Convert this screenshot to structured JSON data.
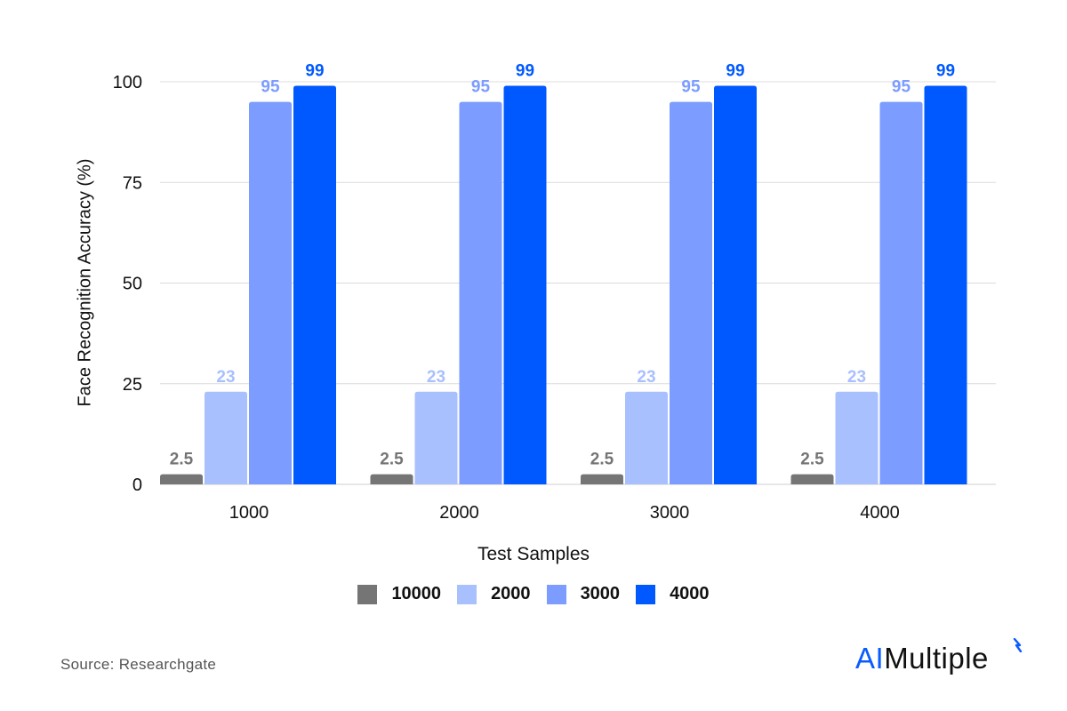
{
  "chart_data": {
    "type": "bar",
    "title": "",
    "xlabel": "Test Samples",
    "ylabel": "Face Recognition Accuracy (%)",
    "categories": [
      "1000",
      "2000",
      "3000",
      "4000"
    ],
    "series": [
      {
        "name": "10000",
        "color": "#757575",
        "label_color": "#757575",
        "values": [
          2.5,
          2.5,
          2.5,
          2.5
        ]
      },
      {
        "name": "2000",
        "color": "#a9c0ff",
        "label_color": "#a9c0ff",
        "values": [
          23,
          23,
          23,
          23
        ]
      },
      {
        "name": "3000",
        "color": "#7c9dff",
        "label_color": "#7c9dff",
        "values": [
          95,
          95,
          95,
          95
        ]
      },
      {
        "name": "4000",
        "color": "#0059ff",
        "label_color": "#0059ff",
        "values": [
          99,
          99,
          99,
          99
        ]
      }
    ],
    "yticks": [
      0,
      25,
      50,
      75,
      100
    ],
    "ylim": [
      0,
      100
    ],
    "grid": true,
    "legend_position": "bottom",
    "data_labels": true
  },
  "footer": {
    "source": "Source: Researchgate",
    "logo_ai": "AI",
    "logo_rest": "Multiple"
  }
}
